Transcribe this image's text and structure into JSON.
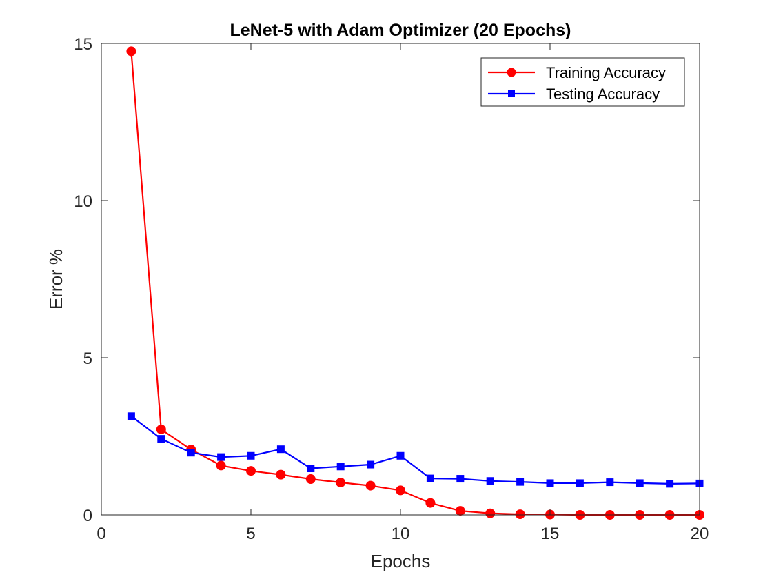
{
  "chart_data": {
    "type": "line",
    "title": "LeNet-5 with Adam Optimizer (20 Epochs)",
    "xlabel": "Epochs",
    "ylabel": "Error %",
    "xlim": [
      0,
      20
    ],
    "ylim": [
      0,
      15
    ],
    "xticks": [
      "0",
      "5",
      "10",
      "15",
      "20"
    ],
    "yticks": [
      "0",
      "5",
      "10",
      "15"
    ],
    "grid": false,
    "legend_position": "top-right",
    "x": [
      1,
      2,
      3,
      4,
      5,
      6,
      7,
      8,
      9,
      10,
      11,
      12,
      13,
      14,
      15,
      16,
      17,
      18,
      19,
      20
    ],
    "series": [
      {
        "name": "Training Accuracy",
        "color": "#ff0000",
        "marker": "circle",
        "values": [
          14.75,
          2.72,
          2.08,
          1.57,
          1.4,
          1.28,
          1.14,
          1.03,
          0.93,
          0.78,
          0.38,
          0.13,
          0.05,
          0.02,
          0.01,
          0.0,
          0.0,
          0.0,
          0.0,
          0.0
        ]
      },
      {
        "name": "Testing Accuracy",
        "color": "#0000ff",
        "marker": "square",
        "values": [
          3.14,
          2.42,
          1.98,
          1.84,
          1.88,
          2.09,
          1.48,
          1.54,
          1.6,
          1.88,
          1.16,
          1.15,
          1.08,
          1.05,
          1.01,
          1.01,
          1.04,
          1.01,
          0.99,
          1.0
        ]
      }
    ]
  }
}
